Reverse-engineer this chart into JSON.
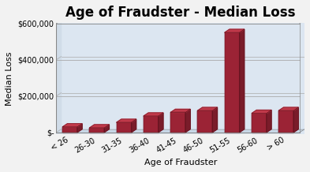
{
  "title": "Age of Fraudster - Median Loss",
  "xlabel": "Age of Fraudster",
  "ylabel": "Median Loss",
  "categories": [
    "< 26",
    "26-30",
    "31-35",
    "36-40",
    "41-45",
    "46-50",
    "51-55",
    "56-60",
    "> 60"
  ],
  "values": [
    30000,
    25000,
    55000,
    90000,
    110000,
    120000,
    550000,
    105000,
    120000
  ],
  "bar_color_face": "#9B2335",
  "bar_color_side": "#7a1c2a",
  "bar_color_top": "#c0394a",
  "ylim": [
    0,
    600000
  ],
  "yticks": [
    0,
    200000,
    400000,
    600000
  ],
  "ytick_labels": [
    "$-",
    "$200,000",
    "$400,000",
    "$600,000"
  ],
  "bg_color": "#f2f2f2",
  "plot_area_color": "#dce6f1",
  "grid_color": "#aaaaaa",
  "title_fontsize": 12,
  "axis_label_fontsize": 8,
  "tick_fontsize": 7,
  "depth_scale": 0.18,
  "bar_width": 0.55
}
